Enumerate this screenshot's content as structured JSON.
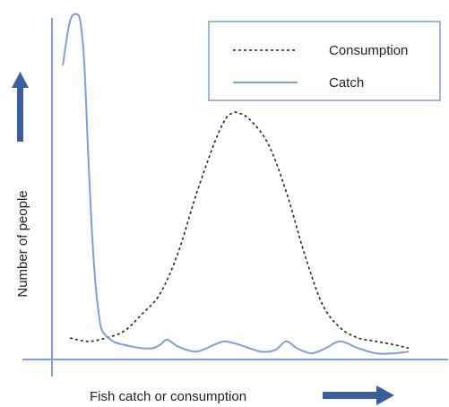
{
  "chart_data": {
    "type": "line",
    "xlabel": "Fish catch or consumption",
    "ylabel": "Number of people",
    "xlim": [
      0,
      100
    ],
    "ylim": [
      0,
      100
    ],
    "legend_position": "top-right",
    "grid": false,
    "series": [
      {
        "name": "Consumption",
        "style": "dashed",
        "color": "#222222",
        "x": [
          5,
          10,
          15,
          20,
          25,
          30,
          35,
          40,
          45,
          48,
          50,
          52,
          55,
          60,
          65,
          70,
          75,
          80,
          85,
          90,
          95,
          99
        ],
        "y": [
          5,
          4,
          5,
          7,
          12,
          18,
          30,
          47,
          62,
          69,
          71,
          71,
          69,
          62,
          48,
          30,
          15,
          8,
          5,
          4,
          3,
          2
        ]
      },
      {
        "name": "Catch",
        "style": "solid",
        "color": "#7f9fd6",
        "x": [
          3,
          5,
          7,
          8,
          9,
          10,
          11,
          12,
          13,
          14,
          17,
          20,
          25,
          28,
          30,
          32,
          35,
          40,
          45,
          48,
          52,
          58,
          62,
          65,
          68,
          72,
          76,
          80,
          85,
          90,
          95,
          99
        ],
        "y": [
          85,
          98,
          100,
          97,
          85,
          60,
          38,
          22,
          12,
          7,
          4,
          3,
          2,
          2,
          3,
          4.5,
          2.5,
          1,
          3,
          4,
          3,
          1,
          1.5,
          4,
          2,
          0.5,
          2,
          4,
          2,
          0.5,
          0.5,
          1
        ]
      }
    ]
  },
  "colors": {
    "axis": "#7f9fd6",
    "arrow": "#3a5f9e",
    "legend_border": "#7f9fd6"
  }
}
